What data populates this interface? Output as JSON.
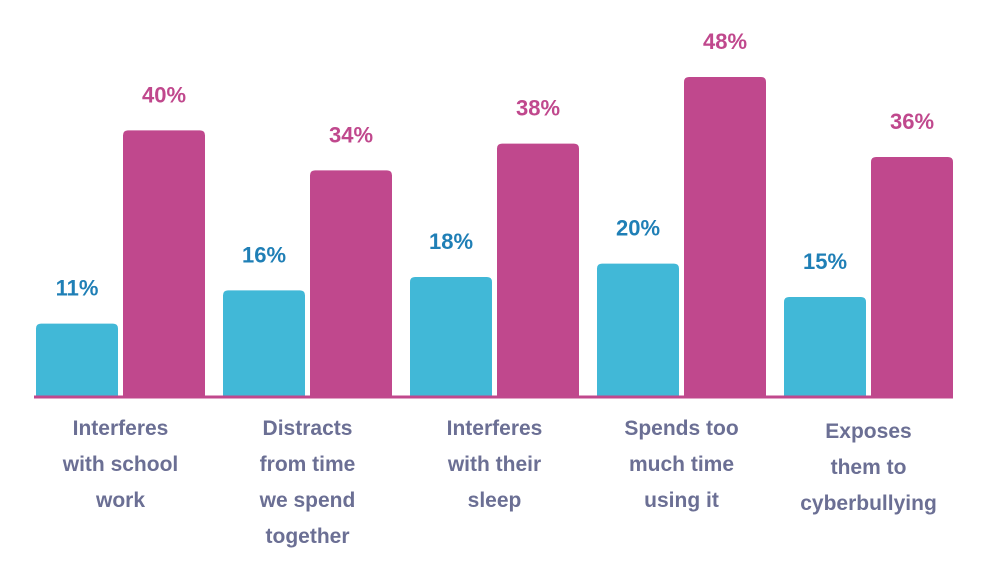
{
  "chart_data": {
    "type": "bar",
    "categories": [
      [
        "Interferes",
        "with school",
        "work"
      ],
      [
        "Distracts",
        "from time",
        "we spend",
        "together"
      ],
      [
        "Interferes",
        "with their",
        "sleep"
      ],
      [
        "Spends too",
        "much time",
        "using it"
      ],
      [
        "Exposes",
        "them to",
        "cyberbullying"
      ]
    ],
    "series": [
      {
        "color": "#41b8d7",
        "values": [
          11,
          16,
          18,
          20,
          15
        ],
        "labels": [
          "11%",
          "16%",
          "18%",
          "20%",
          "15%"
        ]
      },
      {
        "color": "#c0488d",
        "values": [
          40,
          34,
          38,
          48,
          36
        ],
        "labels": [
          "40%",
          "34%",
          "38%",
          "48%",
          "36%"
        ]
      }
    ],
    "label_colors": [
      "#1f7fb6",
      "#c0488d"
    ],
    "ylim": [
      0,
      48
    ],
    "grid": false,
    "legend": "none",
    "baseline_color": "#c0488d",
    "category_label_color": "#6b6f94"
  }
}
